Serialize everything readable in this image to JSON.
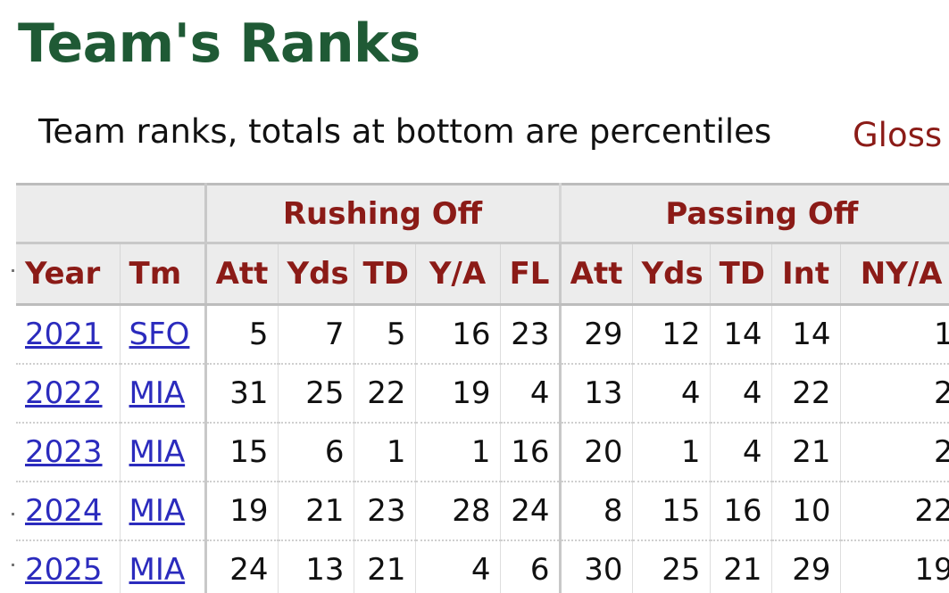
{
  "page": {
    "title": "Team's Ranks",
    "caption": "Team ranks, totals at bottom are percentiles",
    "glossary_link": "Gloss"
  },
  "table": {
    "groups": [
      "Rushing Off",
      "Passing Off"
    ],
    "columns": [
      "Year",
      "Tm",
      "Att",
      "Yds",
      "TD",
      "Y/A",
      "FL",
      "Att",
      "Yds",
      "TD",
      "Int",
      "NY/A"
    ],
    "rows": [
      [
        "2021",
        "SFO",
        "5",
        "7",
        "5",
        "16",
        "23",
        "29",
        "12",
        "14",
        "14",
        "1"
      ],
      [
        "2022",
        "MIA",
        "31",
        "25",
        "22",
        "19",
        "4",
        "13",
        "4",
        "4",
        "22",
        "2"
      ],
      [
        "2023",
        "MIA",
        "15",
        "6",
        "1",
        "1",
        "16",
        "20",
        "1",
        "4",
        "21",
        "2"
      ],
      [
        "2024",
        "MIA",
        "19",
        "21",
        "23",
        "28",
        "24",
        "8",
        "15",
        "16",
        "10",
        "22"
      ],
      [
        "2025",
        "MIA",
        "24",
        "13",
        "21",
        "4",
        "6",
        "30",
        "25",
        "21",
        "29",
        "19"
      ]
    ]
  },
  "colors": {
    "title": "#1f5a35",
    "header_text": "#8b1b17",
    "link": "#2b2bbd",
    "header_bg": "#ececec"
  }
}
